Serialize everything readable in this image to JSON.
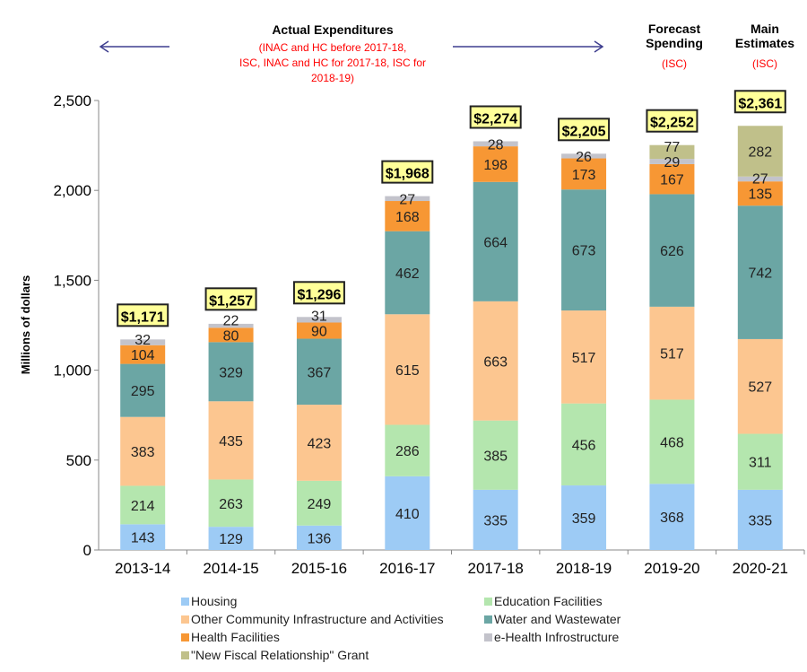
{
  "chart_data": {
    "type": "bar",
    "stacked": true,
    "title": "",
    "xlabel": "",
    "ylabel": "Millions of dollars",
    "ylim": [
      0,
      2500
    ],
    "yticks": [
      0,
      500,
      1000,
      1500,
      2000,
      2500
    ],
    "ytick_labels": [
      "0",
      "500",
      "1,000",
      "1,500",
      "2,000",
      "2,500"
    ],
    "grid": false,
    "legend_position": "bottom",
    "categories": [
      "2013-14",
      "2014-15",
      "2015-16",
      "2016-17",
      "2017-18",
      "2018-19",
      "2019-20",
      "2020-21"
    ],
    "series": [
      {
        "name": "Housing",
        "color": "#9dcbf5",
        "values": [
          143,
          129,
          136,
          410,
          335,
          359,
          368,
          335
        ]
      },
      {
        "name": "Education Facilities",
        "color": "#b4e6ae",
        "values": [
          214,
          263,
          249,
          286,
          385,
          456,
          468,
          311
        ]
      },
      {
        "name": "Other Community Infrastructure and Activities",
        "color": "#fcc690",
        "values": [
          383,
          435,
          423,
          615,
          663,
          517,
          517,
          527
        ]
      },
      {
        "name": "Water and Wastewater",
        "color": "#6ba6a4",
        "values": [
          295,
          329,
          367,
          462,
          664,
          673,
          626,
          742
        ]
      },
      {
        "name": "Health Facilities",
        "color": "#f79734",
        "values": [
          104,
          80,
          90,
          168,
          198,
          173,
          167,
          135
        ]
      },
      {
        "name": "e-Health Infrostructure",
        "color": "#c3c3cb",
        "values": [
          32,
          22,
          31,
          27,
          28,
          26,
          29,
          27
        ]
      },
      {
        "name": "\"New Fiscal Relationship\" Grant",
        "color": "#c0c08a",
        "values": [
          null,
          null,
          null,
          null,
          null,
          null,
          77,
          282
        ]
      }
    ],
    "totals": [
      "$1,171",
      "$1,257",
      "$1,296",
      "$1,968",
      "$2,274",
      "$2,205",
      "$2,252",
      "$2,361"
    ],
    "annotations": {
      "actual_title": "Actual Expenditures",
      "actual_sub": [
        "(INAC and HC before 2017-18,",
        "ISC, INAC and HC for 2017-18, ISC for",
        "2018-19)"
      ],
      "forecast_title": [
        "Forecast",
        "Spending"
      ],
      "forecast_sub": "(ISC)",
      "main_title": [
        "Main",
        "Estimates"
      ],
      "main_sub": "(ISC)"
    },
    "colors": {
      "total_box": "#ffff99",
      "arrow": "#3f3f8f",
      "annotation_red": "#ff0000"
    }
  }
}
